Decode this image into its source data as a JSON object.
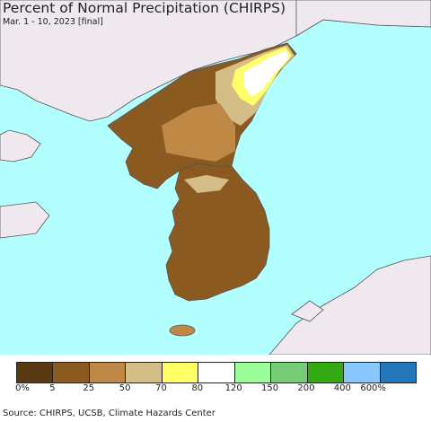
{
  "title": "Percent of Normal Precipitation (CHIRPS)",
  "subtitle": "Mar. 1 - 10, 2023 [final]",
  "source": "Source: CHIRPS, UCSB, Climate Hazards Center",
  "colors": {
    "ocean": "#b3ffff",
    "land_outside": "#efe9ef",
    "border": "#555555",
    "class_0_5": "#5a3a12",
    "class_5_25": "#8b5a21",
    "class_25_50": "#bf8945",
    "class_50_70": "#d4bd86",
    "class_70_80": "#ffff66",
    "class_80_120": "#ffffff",
    "class_120_150": "#99ff99",
    "class_150_200": "#77cc77",
    "class_200_400": "#33aa11",
    "class_400_600": "#88c8ff",
    "class_600_plus": "#2277bb"
  },
  "legend": {
    "colors": [
      "#5a3a12",
      "#8b5a21",
      "#bf8945",
      "#d4bd86",
      "#ffff66",
      "#ffffff",
      "#99ff99",
      "#77cc77",
      "#33aa11",
      "#88c8ff",
      "#2277bb"
    ],
    "labels": [
      "0%",
      "5",
      "25",
      "50",
      "70",
      "80",
      "120",
      "150",
      "200",
      "400",
      "600%"
    ]
  }
}
